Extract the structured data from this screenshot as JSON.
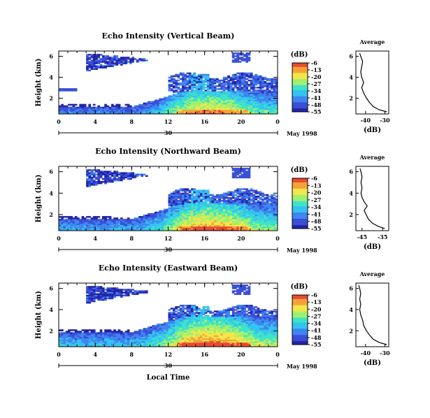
{
  "colors": {
    "scale": [
      "#ffffff",
      "#2424a8",
      "#3a4fd8",
      "#3f86f0",
      "#35c3f0",
      "#3fe3c8",
      "#a0f070",
      "#f3e64a",
      "#f7a038",
      "#e84a30"
    ]
  },
  "chart_data": [
    {
      "type": "heatmap",
      "title": "Echo Intensity (Vertical Beam)",
      "ylabel": "Height (km)",
      "x_ticks": [
        "0",
        "4",
        "8",
        "12",
        "16",
        "20",
        "0"
      ],
      "y_ticks": [
        "2",
        "4",
        "6"
      ],
      "xlim": [
        0,
        24
      ],
      "ylim": [
        0.5,
        6.5
      ],
      "date_label": "30",
      "month_label": "May 1998",
      "colorbar": {
        "unit": "(dB)",
        "ticks": [
          "-6",
          "-13",
          "-20",
          "-27",
          "-34",
          "-41",
          "-48",
          "-55"
        ]
      },
      "average": {
        "title": "Average",
        "xlabel": "(dB)",
        "x_ticks": [
          "-40",
          "-30"
        ],
        "y_ticks": [
          "2",
          "4",
          "6"
        ],
        "xlim": [
          -45,
          -28
        ],
        "ylim": [
          0.5,
          6.5
        ],
        "profile": [
          {
            "h": 0.7,
            "v": -29
          },
          {
            "h": 0.9,
            "v": -33
          },
          {
            "h": 1.2,
            "v": -36
          },
          {
            "h": 1.6,
            "v": -38
          },
          {
            "h": 2.0,
            "v": -39.5
          },
          {
            "h": 2.5,
            "v": -41
          },
          {
            "h": 3.0,
            "v": -42
          },
          {
            "h": 3.5,
            "v": -41
          },
          {
            "h": 4.0,
            "v": -42
          },
          {
            "h": 4.5,
            "v": -42.5
          },
          {
            "h": 5.0,
            "v": -42
          },
          {
            "h": 5.5,
            "v": -41.5
          },
          {
            "h": 6.0,
            "v": -42.5
          },
          {
            "h": 6.3,
            "v": -43
          }
        ]
      }
    },
    {
      "type": "heatmap",
      "title": "Echo Intensity (Northward Beam)",
      "ylabel": "Height (km)",
      "x_ticks": [
        "0",
        "4",
        "8",
        "12",
        "16",
        "20",
        "0"
      ],
      "y_ticks": [
        "2",
        "4",
        "6"
      ],
      "xlim": [
        0,
        24
      ],
      "ylim": [
        0.5,
        6.5
      ],
      "date_label": "30",
      "month_label": "May 1998",
      "colorbar": {
        "unit": "(dB)",
        "ticks": [
          "-6",
          "-13",
          "-20",
          "-27",
          "-34",
          "-41",
          "-48",
          "-55"
        ]
      },
      "average": {
        "title": "Average",
        "xlabel": "(dB)",
        "x_ticks": [
          "-45",
          "-35"
        ],
        "y_ticks": [
          "2",
          "4",
          "6"
        ],
        "xlim": [
          -48,
          -32
        ],
        "ylim": [
          0.5,
          6.5
        ],
        "profile": [
          {
            "h": 0.7,
            "v": -34
          },
          {
            "h": 0.9,
            "v": -37
          },
          {
            "h": 1.2,
            "v": -40
          },
          {
            "h": 1.6,
            "v": -42
          },
          {
            "h": 2.0,
            "v": -43
          },
          {
            "h": 2.4,
            "v": -44
          },
          {
            "h": 2.8,
            "v": -42.5
          },
          {
            "h": 3.2,
            "v": -44
          },
          {
            "h": 3.6,
            "v": -45
          },
          {
            "h": 4.0,
            "v": -45.5
          },
          {
            "h": 4.5,
            "v": -45
          },
          {
            "h": 5.0,
            "v": -45.5
          },
          {
            "h": 5.5,
            "v": -45
          },
          {
            "h": 6.0,
            "v": -45.5
          },
          {
            "h": 6.3,
            "v": -46
          }
        ]
      }
    },
    {
      "type": "heatmap",
      "title": "Echo Intensity (Eastward Beam)",
      "ylabel": "Height (km)",
      "x_ticks": [
        "0",
        "4",
        "8",
        "12",
        "16",
        "20",
        "0"
      ],
      "y_ticks": [
        "2",
        "4",
        "6"
      ],
      "xlim": [
        0,
        24
      ],
      "ylim": [
        0.5,
        6.5
      ],
      "date_label": "30",
      "month_label": "May 1998",
      "xlabel": "Local Time",
      "colorbar": {
        "unit": "(dB)",
        "ticks": [
          "-6",
          "-13",
          "-20",
          "-27",
          "-34",
          "-41",
          "-48",
          "-55"
        ]
      },
      "average": {
        "title": "Average",
        "xlabel": "(dB)",
        "x_ticks": [
          "-40",
          "-30"
        ],
        "y_ticks": [
          "2",
          "4",
          "6"
        ],
        "xlim": [
          -45,
          -28
        ],
        "ylim": [
          0.5,
          6.5
        ],
        "profile": [
          {
            "h": 0.7,
            "v": -29
          },
          {
            "h": 0.9,
            "v": -33
          },
          {
            "h": 1.2,
            "v": -36
          },
          {
            "h": 1.6,
            "v": -38
          },
          {
            "h": 2.0,
            "v": -39.5
          },
          {
            "h": 2.5,
            "v": -41
          },
          {
            "h": 3.0,
            "v": -41.5
          },
          {
            "h": 3.5,
            "v": -42.5
          },
          {
            "h": 4.0,
            "v": -43
          },
          {
            "h": 4.5,
            "v": -42.5
          },
          {
            "h": 5.0,
            "v": -43
          },
          {
            "h": 5.5,
            "v": -42.5
          },
          {
            "h": 6.0,
            "v": -43
          },
          {
            "h": 6.3,
            "v": -43.5
          }
        ]
      }
    }
  ]
}
